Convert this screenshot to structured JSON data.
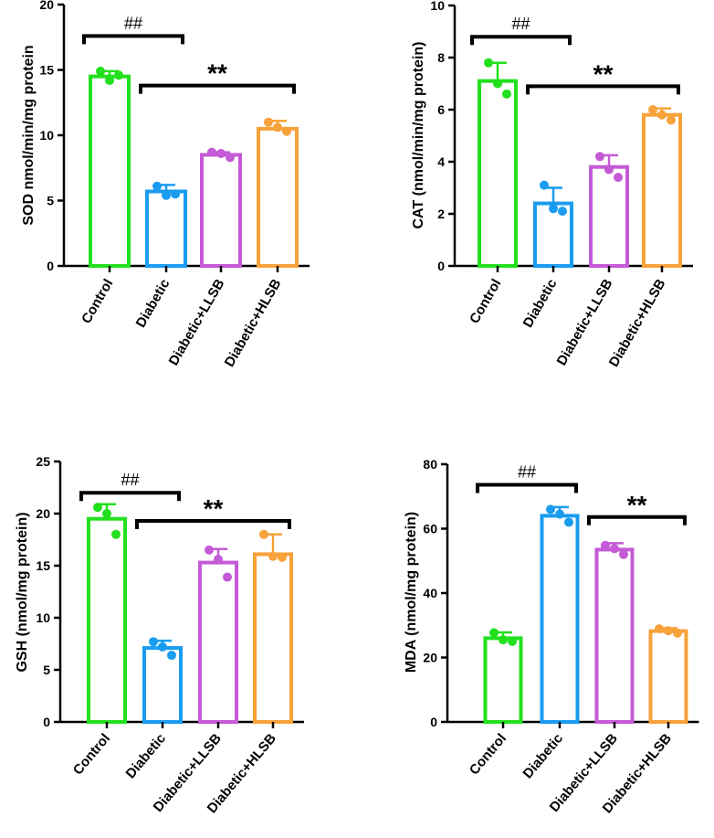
{
  "chart_data": [
    {
      "type": "bar",
      "panel": "top-left",
      "ylabel": "SOD nmol/min/mg protein",
      "ylim": [
        0,
        20
      ],
      "yticks": [
        "0",
        "5",
        "10",
        "15",
        "20"
      ],
      "categories": [
        "Control",
        "Diabetic",
        "Diabetic+LLSB",
        "Diabetic+HLSB"
      ],
      "values": [
        14.5,
        5.7,
        8.5,
        10.5
      ],
      "errors": [
        0.4,
        0.5,
        0.2,
        0.6
      ],
      "points": [
        [
          14.9,
          14.2,
          14.6
        ],
        [
          6.1,
          5.4,
          5.5
        ],
        [
          8.7,
          8.6,
          8.3
        ],
        [
          11.0,
          10.6,
          10.3
        ]
      ],
      "colors": [
        "#22e01d",
        "#1a9cf0",
        "#c45ad6",
        "#f7a23a"
      ],
      "annotations": [
        {
          "text": "##",
          "from": 0,
          "to": 1,
          "y": 17.6
        },
        {
          "text": "**",
          "from": 1,
          "to": 3,
          "y": 13.8
        }
      ]
    },
    {
      "type": "bar",
      "panel": "top-right",
      "ylabel": "CAT (nmol/min/mg protein)",
      "ylim": [
        0,
        10
      ],
      "yticks": [
        "0",
        "2",
        "4",
        "6",
        "8",
        "10"
      ],
      "categories": [
        "Control",
        "Diabetic",
        "Diabetic+LLSB",
        "Diabetic+HLSB"
      ],
      "values": [
        7.1,
        2.4,
        3.8,
        5.8
      ],
      "errors": [
        0.7,
        0.6,
        0.45,
        0.25
      ],
      "points": [
        [
          7.8,
          7.0,
          6.6
        ],
        [
          3.1,
          2.2,
          2.1
        ],
        [
          4.2,
          3.7,
          3.4
        ],
        [
          6.0,
          5.8,
          5.6
        ]
      ],
      "colors": [
        "#22e01d",
        "#1a9cf0",
        "#c45ad6",
        "#f7a23a"
      ],
      "annotations": [
        {
          "text": "##",
          "from": 0,
          "to": 1,
          "y": 8.8
        },
        {
          "text": "**",
          "from": 1,
          "to": 3,
          "y": 6.9
        }
      ]
    },
    {
      "type": "bar",
      "panel": "bottom-left",
      "ylabel": "GSH (nmol/mg protein)",
      "ylim": [
        0,
        25
      ],
      "yticks": [
        "0",
        "5",
        "10",
        "15",
        "20",
        "25"
      ],
      "categories": [
        "Control",
        "Diabetic",
        "Diabetic+LLSB",
        "Diabetic+HLSB"
      ],
      "values": [
        19.5,
        7.1,
        15.3,
        16.1
      ],
      "errors": [
        1.4,
        0.7,
        1.3,
        1.9
      ],
      "points": [
        [
          20.6,
          20.0,
          18.0
        ],
        [
          7.7,
          7.2,
          6.4
        ],
        [
          16.5,
          15.6,
          13.9
        ],
        [
          18.0,
          15.9,
          15.8
        ]
      ],
      "colors": [
        "#22e01d",
        "#1a9cf0",
        "#c45ad6",
        "#f7a23a"
      ],
      "annotations": [
        {
          "text": "##",
          "from": 0,
          "to": 1,
          "y": 22.0
        },
        {
          "text": "**",
          "from": 1,
          "to": 3,
          "y": 19.3
        }
      ]
    },
    {
      "type": "bar",
      "panel": "bottom-right",
      "ylabel": "MDA (nmol/mg protein)",
      "ylim": [
        0,
        80
      ],
      "yticks": [
        "0",
        "20",
        "40",
        "60",
        "80"
      ],
      "categories": [
        "Control",
        "Diabetic",
        "Diabetic+LLSB",
        "Diabetic+HLSB"
      ],
      "values": [
        26,
        64,
        53.5,
        28.2
      ],
      "errors": [
        1.8,
        2.7,
        2.0,
        0.9
      ],
      "points": [
        [
          27.7,
          25.5,
          25.0
        ],
        [
          66.0,
          64.5,
          62.0
        ],
        [
          54.8,
          53.8,
          52.0
        ],
        [
          28.9,
          28.3,
          27.6
        ]
      ],
      "colors": [
        "#22e01d",
        "#1a9cf0",
        "#c45ad6",
        "#f7a23a"
      ],
      "annotations": [
        {
          "text": "##",
          "from": 0,
          "to": 1,
          "y": 73.6
        },
        {
          "text": "**",
          "from": 2,
          "to": 3,
          "y": 63.6
        }
      ]
    }
  ]
}
